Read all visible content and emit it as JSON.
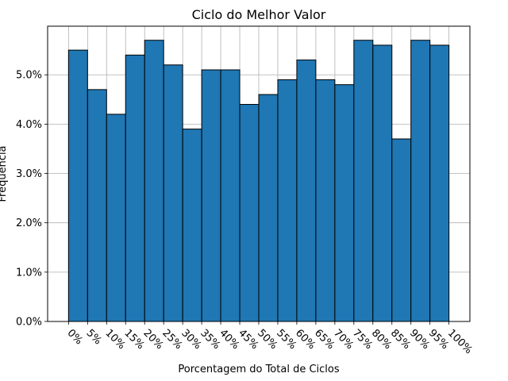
{
  "chart_data": {
    "type": "bar",
    "title": "Ciclo do Melhor Valor",
    "xlabel": "Porcentagem do Total de Ciclos",
    "ylabel": "Frequência",
    "x_tick_labels": [
      "0%",
      "5%",
      "10%",
      "15%",
      "20%",
      "25%",
      "30%",
      "35%",
      "40%",
      "45%",
      "50%",
      "55%",
      "60%",
      "65%",
      "70%",
      "75%",
      "80%",
      "85%",
      "90%",
      "95%",
      "100%"
    ],
    "bins": [
      [
        0,
        5
      ],
      [
        5,
        10
      ],
      [
        10,
        15
      ],
      [
        15,
        20
      ],
      [
        20,
        25
      ],
      [
        25,
        30
      ],
      [
        30,
        35
      ],
      [
        35,
        40
      ],
      [
        40,
        45
      ],
      [
        45,
        50
      ],
      [
        50,
        55
      ],
      [
        55,
        60
      ],
      [
        60,
        65
      ],
      [
        65,
        70
      ],
      [
        70,
        75
      ],
      [
        75,
        80
      ],
      [
        80,
        85
      ],
      [
        85,
        90
      ],
      [
        90,
        95
      ],
      [
        95,
        100
      ]
    ],
    "values": [
      5.5,
      4.7,
      4.2,
      5.4,
      5.7,
      5.2,
      3.9,
      5.1,
      5.1,
      4.4,
      4.6,
      4.9,
      5.3,
      4.9,
      4.8,
      5.7,
      5.6,
      3.7,
      5.7,
      5.6
    ],
    "y_ticks": [
      0,
      1,
      2,
      3,
      4,
      5
    ],
    "y_tick_labels": [
      "0.0%",
      "1.0%",
      "2.0%",
      "3.0%",
      "4.0%",
      "5.0%"
    ],
    "xlim": [
      -5.5,
      105.5
    ],
    "ylim": [
      0,
      5.985
    ],
    "grid": true,
    "bar_color": "#1f77b4",
    "edge_color": "#000000"
  }
}
